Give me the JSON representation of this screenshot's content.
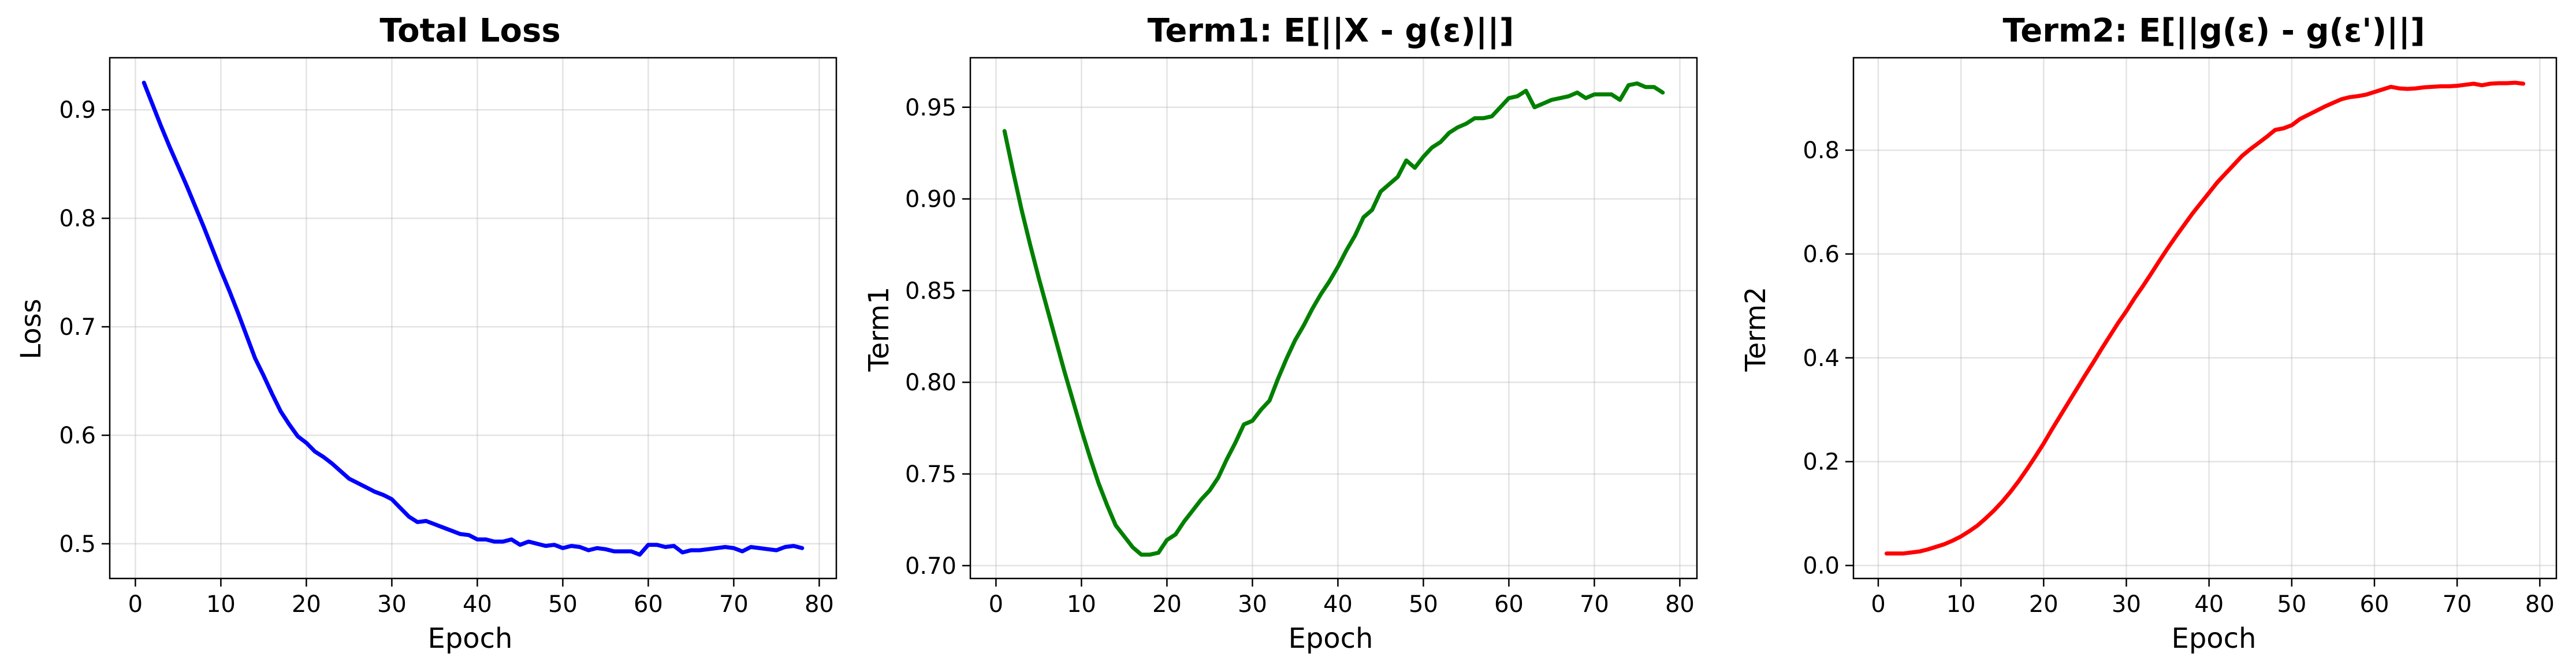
{
  "chart_data": [
    {
      "type": "line",
      "title": "Total Loss",
      "xlabel": "Epoch",
      "ylabel": "Loss",
      "xlim": [
        -3,
        82
      ],
      "ylim": [
        0.468,
        0.948
      ],
      "xticks": [
        0,
        10,
        20,
        30,
        40,
        50,
        60,
        70,
        80
      ],
      "yticks": [
        0.5,
        0.6,
        0.7,
        0.8,
        0.9
      ],
      "ytick_labels": [
        "0.5",
        "0.6",
        "0.7",
        "0.8",
        "0.9"
      ],
      "grid": true,
      "color": "#0000ff",
      "x": [
        1,
        2,
        3,
        4,
        5,
        6,
        7,
        8,
        9,
        10,
        11,
        12,
        13,
        14,
        15,
        16,
        17,
        18,
        19,
        20,
        21,
        22,
        23,
        24,
        25,
        26,
        27,
        28,
        29,
        30,
        31,
        32,
        33,
        34,
        35,
        36,
        37,
        38,
        39,
        40,
        41,
        42,
        43,
        44,
        45,
        46,
        47,
        48,
        49,
        50,
        51,
        52,
        53,
        54,
        55,
        56,
        57,
        58,
        59,
        60,
        61,
        62,
        63,
        64,
        65,
        66,
        67,
        68,
        69,
        70,
        71,
        72,
        73,
        74,
        75,
        76,
        77,
        78
      ],
      "values": [
        0.925,
        0.905,
        0.885,
        0.866,
        0.848,
        0.83,
        0.811,
        0.792,
        0.772,
        0.752,
        0.733,
        0.713,
        0.692,
        0.671,
        0.655,
        0.638,
        0.622,
        0.61,
        0.599,
        0.593,
        0.585,
        0.58,
        0.574,
        0.567,
        0.56,
        0.556,
        0.552,
        0.548,
        0.545,
        0.541,
        0.533,
        0.525,
        0.52,
        0.521,
        0.518,
        0.515,
        0.512,
        0.509,
        0.508,
        0.504,
        0.504,
        0.502,
        0.502,
        0.504,
        0.499,
        0.502,
        0.5,
        0.498,
        0.499,
        0.496,
        0.498,
        0.497,
        0.494,
        0.496,
        0.495,
        0.493,
        0.493,
        0.493,
        0.49,
        0.499,
        0.499,
        0.497,
        0.498,
        0.492,
        0.494,
        0.494,
        0.495,
        0.496,
        0.497,
        0.496,
        0.493,
        0.497,
        0.496,
        0.495,
        0.494,
        0.497,
        0.498,
        0.496
      ]
    },
    {
      "type": "line",
      "title": "Term1: E[||X - g(ε)||]",
      "xlabel": "Epoch",
      "ylabel": "Term1",
      "xlim": [
        -3,
        82
      ],
      "ylim": [
        0.693,
        0.977
      ],
      "xticks": [
        0,
        10,
        20,
        30,
        40,
        50,
        60,
        70,
        80
      ],
      "yticks": [
        0.7,
        0.75,
        0.8,
        0.85,
        0.9,
        0.95
      ],
      "ytick_labels": [
        "0.70",
        "0.75",
        "0.80",
        "0.85",
        "0.90",
        "0.95"
      ],
      "grid": true,
      "color": "#008000",
      "x": [
        1,
        2,
        3,
        4,
        5,
        6,
        7,
        8,
        9,
        10,
        11,
        12,
        13,
        14,
        15,
        16,
        17,
        18,
        19,
        20,
        21,
        22,
        23,
        24,
        25,
        26,
        27,
        28,
        29,
        30,
        31,
        32,
        33,
        34,
        35,
        36,
        37,
        38,
        39,
        40,
        41,
        42,
        43,
        44,
        45,
        46,
        47,
        48,
        49,
        50,
        51,
        52,
        53,
        54,
        55,
        56,
        57,
        58,
        59,
        60,
        61,
        62,
        63,
        64,
        65,
        66,
        67,
        68,
        69,
        70,
        71,
        72,
        73,
        74,
        75,
        76,
        77,
        78
      ],
      "values": [
        0.937,
        0.915,
        0.894,
        0.875,
        0.857,
        0.84,
        0.823,
        0.806,
        0.79,
        0.774,
        0.759,
        0.745,
        0.733,
        0.722,
        0.716,
        0.71,
        0.706,
        0.706,
        0.707,
        0.714,
        0.717,
        0.724,
        0.73,
        0.736,
        0.741,
        0.748,
        0.758,
        0.767,
        0.777,
        0.779,
        0.785,
        0.79,
        0.802,
        0.813,
        0.823,
        0.831,
        0.84,
        0.848,
        0.855,
        0.863,
        0.872,
        0.88,
        0.89,
        0.894,
        0.904,
        0.908,
        0.912,
        0.921,
        0.917,
        0.923,
        0.928,
        0.931,
        0.936,
        0.939,
        0.941,
        0.944,
        0.944,
        0.945,
        0.95,
        0.955,
        0.956,
        0.959,
        0.95,
        0.952,
        0.954,
        0.955,
        0.956,
        0.958,
        0.955,
        0.957,
        0.957,
        0.957,
        0.954,
        0.962,
        0.963,
        0.961,
        0.961,
        0.958
      ]
    },
    {
      "type": "line",
      "title": "Term2: E[||g(ε) - g(ε')||]",
      "xlabel": "Epoch",
      "ylabel": "Term2",
      "xlim": [
        -3,
        82
      ],
      "ylim": [
        -0.025,
        0.978
      ],
      "xticks": [
        0,
        10,
        20,
        30,
        40,
        50,
        60,
        70,
        80
      ],
      "yticks": [
        0.0,
        0.2,
        0.4,
        0.6,
        0.8
      ],
      "ytick_labels": [
        "0.0",
        "0.2",
        "0.4",
        "0.6",
        "0.8"
      ],
      "grid": true,
      "color": "#ff0000",
      "x": [
        1,
        2,
        3,
        4,
        5,
        6,
        7,
        8,
        9,
        10,
        11,
        12,
        13,
        14,
        15,
        16,
        17,
        18,
        19,
        20,
        21,
        22,
        23,
        24,
        25,
        26,
        27,
        28,
        29,
        30,
        31,
        32,
        33,
        34,
        35,
        36,
        37,
        38,
        39,
        40,
        41,
        42,
        43,
        44,
        45,
        46,
        47,
        48,
        49,
        50,
        51,
        52,
        53,
        54,
        55,
        56,
        57,
        58,
        59,
        60,
        61,
        62,
        63,
        64,
        65,
        66,
        67,
        68,
        69,
        70,
        71,
        72,
        73,
        74,
        75,
        76,
        77,
        78
      ],
      "values": [
        0.023,
        0.023,
        0.023,
        0.025,
        0.027,
        0.031,
        0.036,
        0.041,
        0.048,
        0.056,
        0.066,
        0.077,
        0.091,
        0.106,
        0.123,
        0.142,
        0.163,
        0.186,
        0.21,
        0.235,
        0.262,
        0.288,
        0.314,
        0.34,
        0.366,
        0.391,
        0.417,
        0.442,
        0.467,
        0.49,
        0.515,
        0.538,
        0.562,
        0.587,
        0.611,
        0.634,
        0.656,
        0.678,
        0.698,
        0.718,
        0.738,
        0.755,
        0.772,
        0.789,
        0.802,
        0.814,
        0.826,
        0.839,
        0.842,
        0.848,
        0.86,
        0.868,
        0.876,
        0.884,
        0.891,
        0.898,
        0.902,
        0.904,
        0.907,
        0.912,
        0.917,
        0.922,
        0.919,
        0.918,
        0.919,
        0.921,
        0.922,
        0.923,
        0.923,
        0.924,
        0.926,
        0.928,
        0.925,
        0.928,
        0.929,
        0.929,
        0.93,
        0.928
      ]
    }
  ]
}
